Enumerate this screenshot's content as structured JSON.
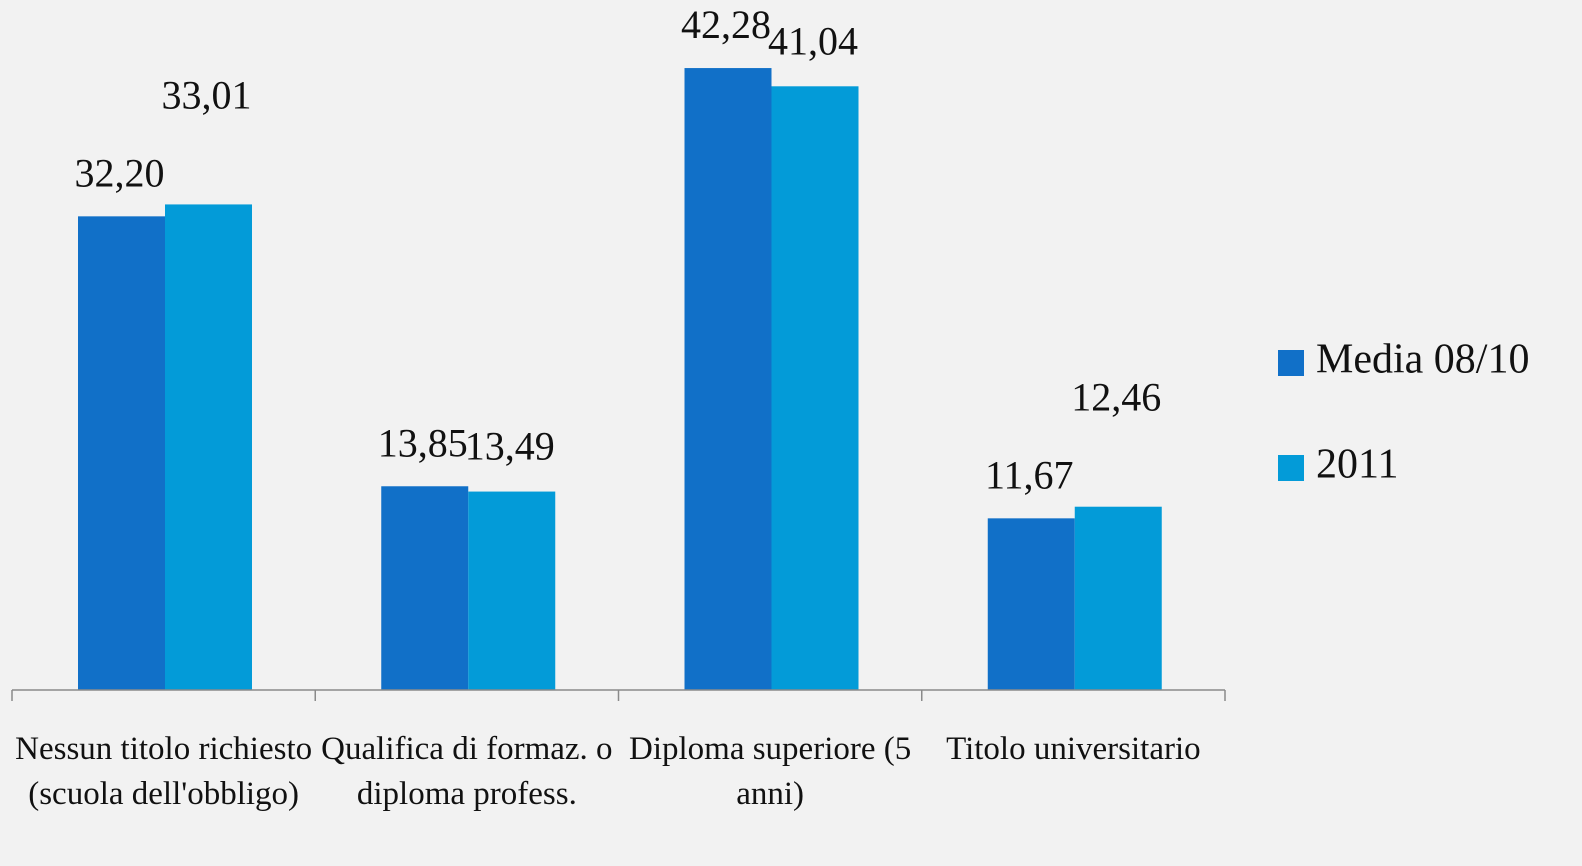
{
  "chart_data": {
    "type": "bar",
    "categories": [
      "Nessun titolo richiesto (scuola dell'obbligo)",
      "Qualifica di formaz. o diploma profess.",
      "Diploma superiore (5 anni)",
      "Titolo universitario"
    ],
    "series": [
      {
        "name": "Media 08/10",
        "color": "#1170c8",
        "values": [
          32.2,
          13.85,
          42.28,
          11.67
        ],
        "value_labels": [
          "32,20",
          "13,85",
          "42,28",
          "11,67"
        ]
      },
      {
        "name": "2011",
        "color": "#039bd8",
        "values": [
          33.01,
          13.49,
          41.04,
          12.46
        ],
        "value_labels": [
          "33,01",
          "13,49",
          "41,04",
          "12,46"
        ]
      }
    ],
    "ylim": [
      0,
      45
    ],
    "legend": "right"
  }
}
